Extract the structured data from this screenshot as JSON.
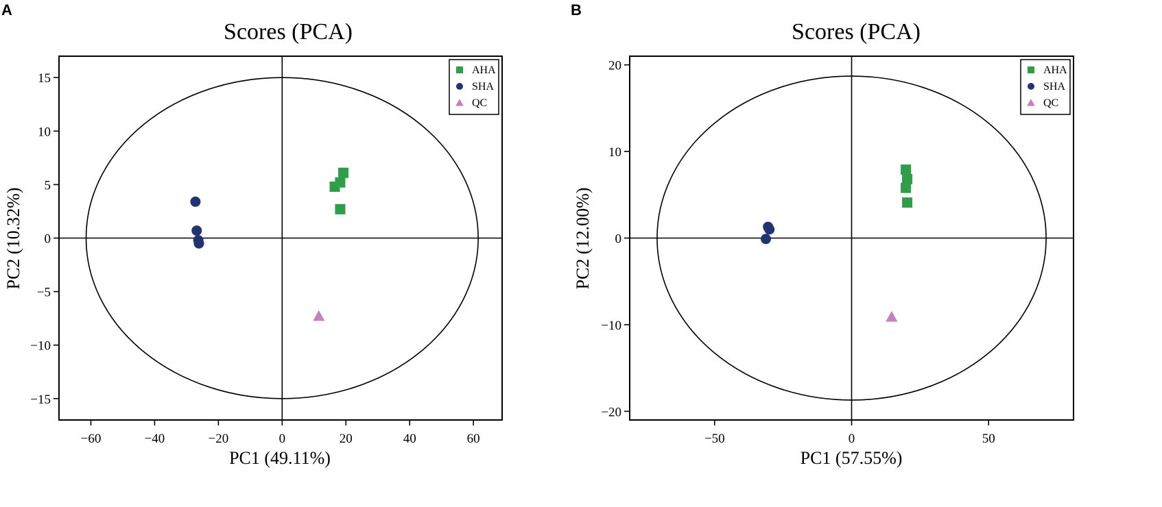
{
  "chart_data": [
    {
      "panel": "A",
      "type": "scatter",
      "title": "Scores (PCA)",
      "xlabel": "PC1 (49.11%)",
      "ylabel": "PC2 (10.32%)",
      "xlim": [
        -70,
        69
      ],
      "ylim": [
        -17,
        17
      ],
      "xticks": [
        -60,
        -40,
        -20,
        0,
        20,
        40,
        60
      ],
      "yticks": [
        -15,
        -10,
        -5,
        0,
        5,
        10,
        15
      ],
      "xtick_labels": [
        "−60",
        "−40",
        "−20",
        "0",
        "20",
        "40",
        "60"
      ],
      "ytick_labels": [
        "−15",
        "−10",
        "−5",
        "0",
        "5",
        "10",
        "15"
      ],
      "ellipse": {
        "rx": 61.5,
        "ry": 15
      },
      "series": [
        {
          "name": "AHA",
          "marker": "square",
          "color": "#2e9e48",
          "x": [
            19.2,
            18.2,
            16.5,
            18.2
          ],
          "y": [
            6.1,
            5.2,
            4.8,
            2.7
          ]
        },
        {
          "name": "SHA",
          "marker": "circle",
          "color": "#1f3470",
          "x": [
            -27.2,
            -26.8,
            -26.3,
            -26.1
          ],
          "y": [
            3.4,
            0.7,
            -0.2,
            -0.5
          ]
        },
        {
          "name": "QC",
          "marker": "triangle",
          "color": "#c77fbd",
          "x": [
            11.5
          ],
          "y": [
            -7.3
          ]
        }
      ],
      "legend_position": "top-right"
    },
    {
      "panel": "B",
      "type": "scatter",
      "title": "Scores (PCA)",
      "xlabel": "PC1 (57.55%)",
      "ylabel": "PC2 (12.00%)",
      "xlim": [
        -81,
        81
      ],
      "ylim": [
        -21,
        21
      ],
      "xticks": [
        -50,
        0,
        50
      ],
      "yticks": [
        -20,
        -10,
        0,
        10,
        20
      ],
      "xtick_labels": [
        "−50",
        "0",
        "50"
      ],
      "ytick_labels": [
        "−20",
        "−10",
        "0",
        "10",
        "20"
      ],
      "ellipse": {
        "rx": 71,
        "ry": 18.7
      },
      "series": [
        {
          "name": "AHA",
          "marker": "square",
          "color": "#2e9e48",
          "x": [
            19.8,
            20.3,
            19.8,
            20.3
          ],
          "y": [
            7.9,
            6.8,
            5.8,
            4.1
          ]
        },
        {
          "name": "SHA",
          "marker": "circle",
          "color": "#1f3470",
          "x": [
            -30.5,
            -30.0,
            -31.3
          ],
          "y": [
            1.3,
            1.0,
            -0.1
          ]
        },
        {
          "name": "QC",
          "marker": "triangle",
          "color": "#c77fbd",
          "x": [
            14.6
          ],
          "y": [
            -9.1
          ]
        }
      ],
      "legend_position": "top-right"
    }
  ]
}
